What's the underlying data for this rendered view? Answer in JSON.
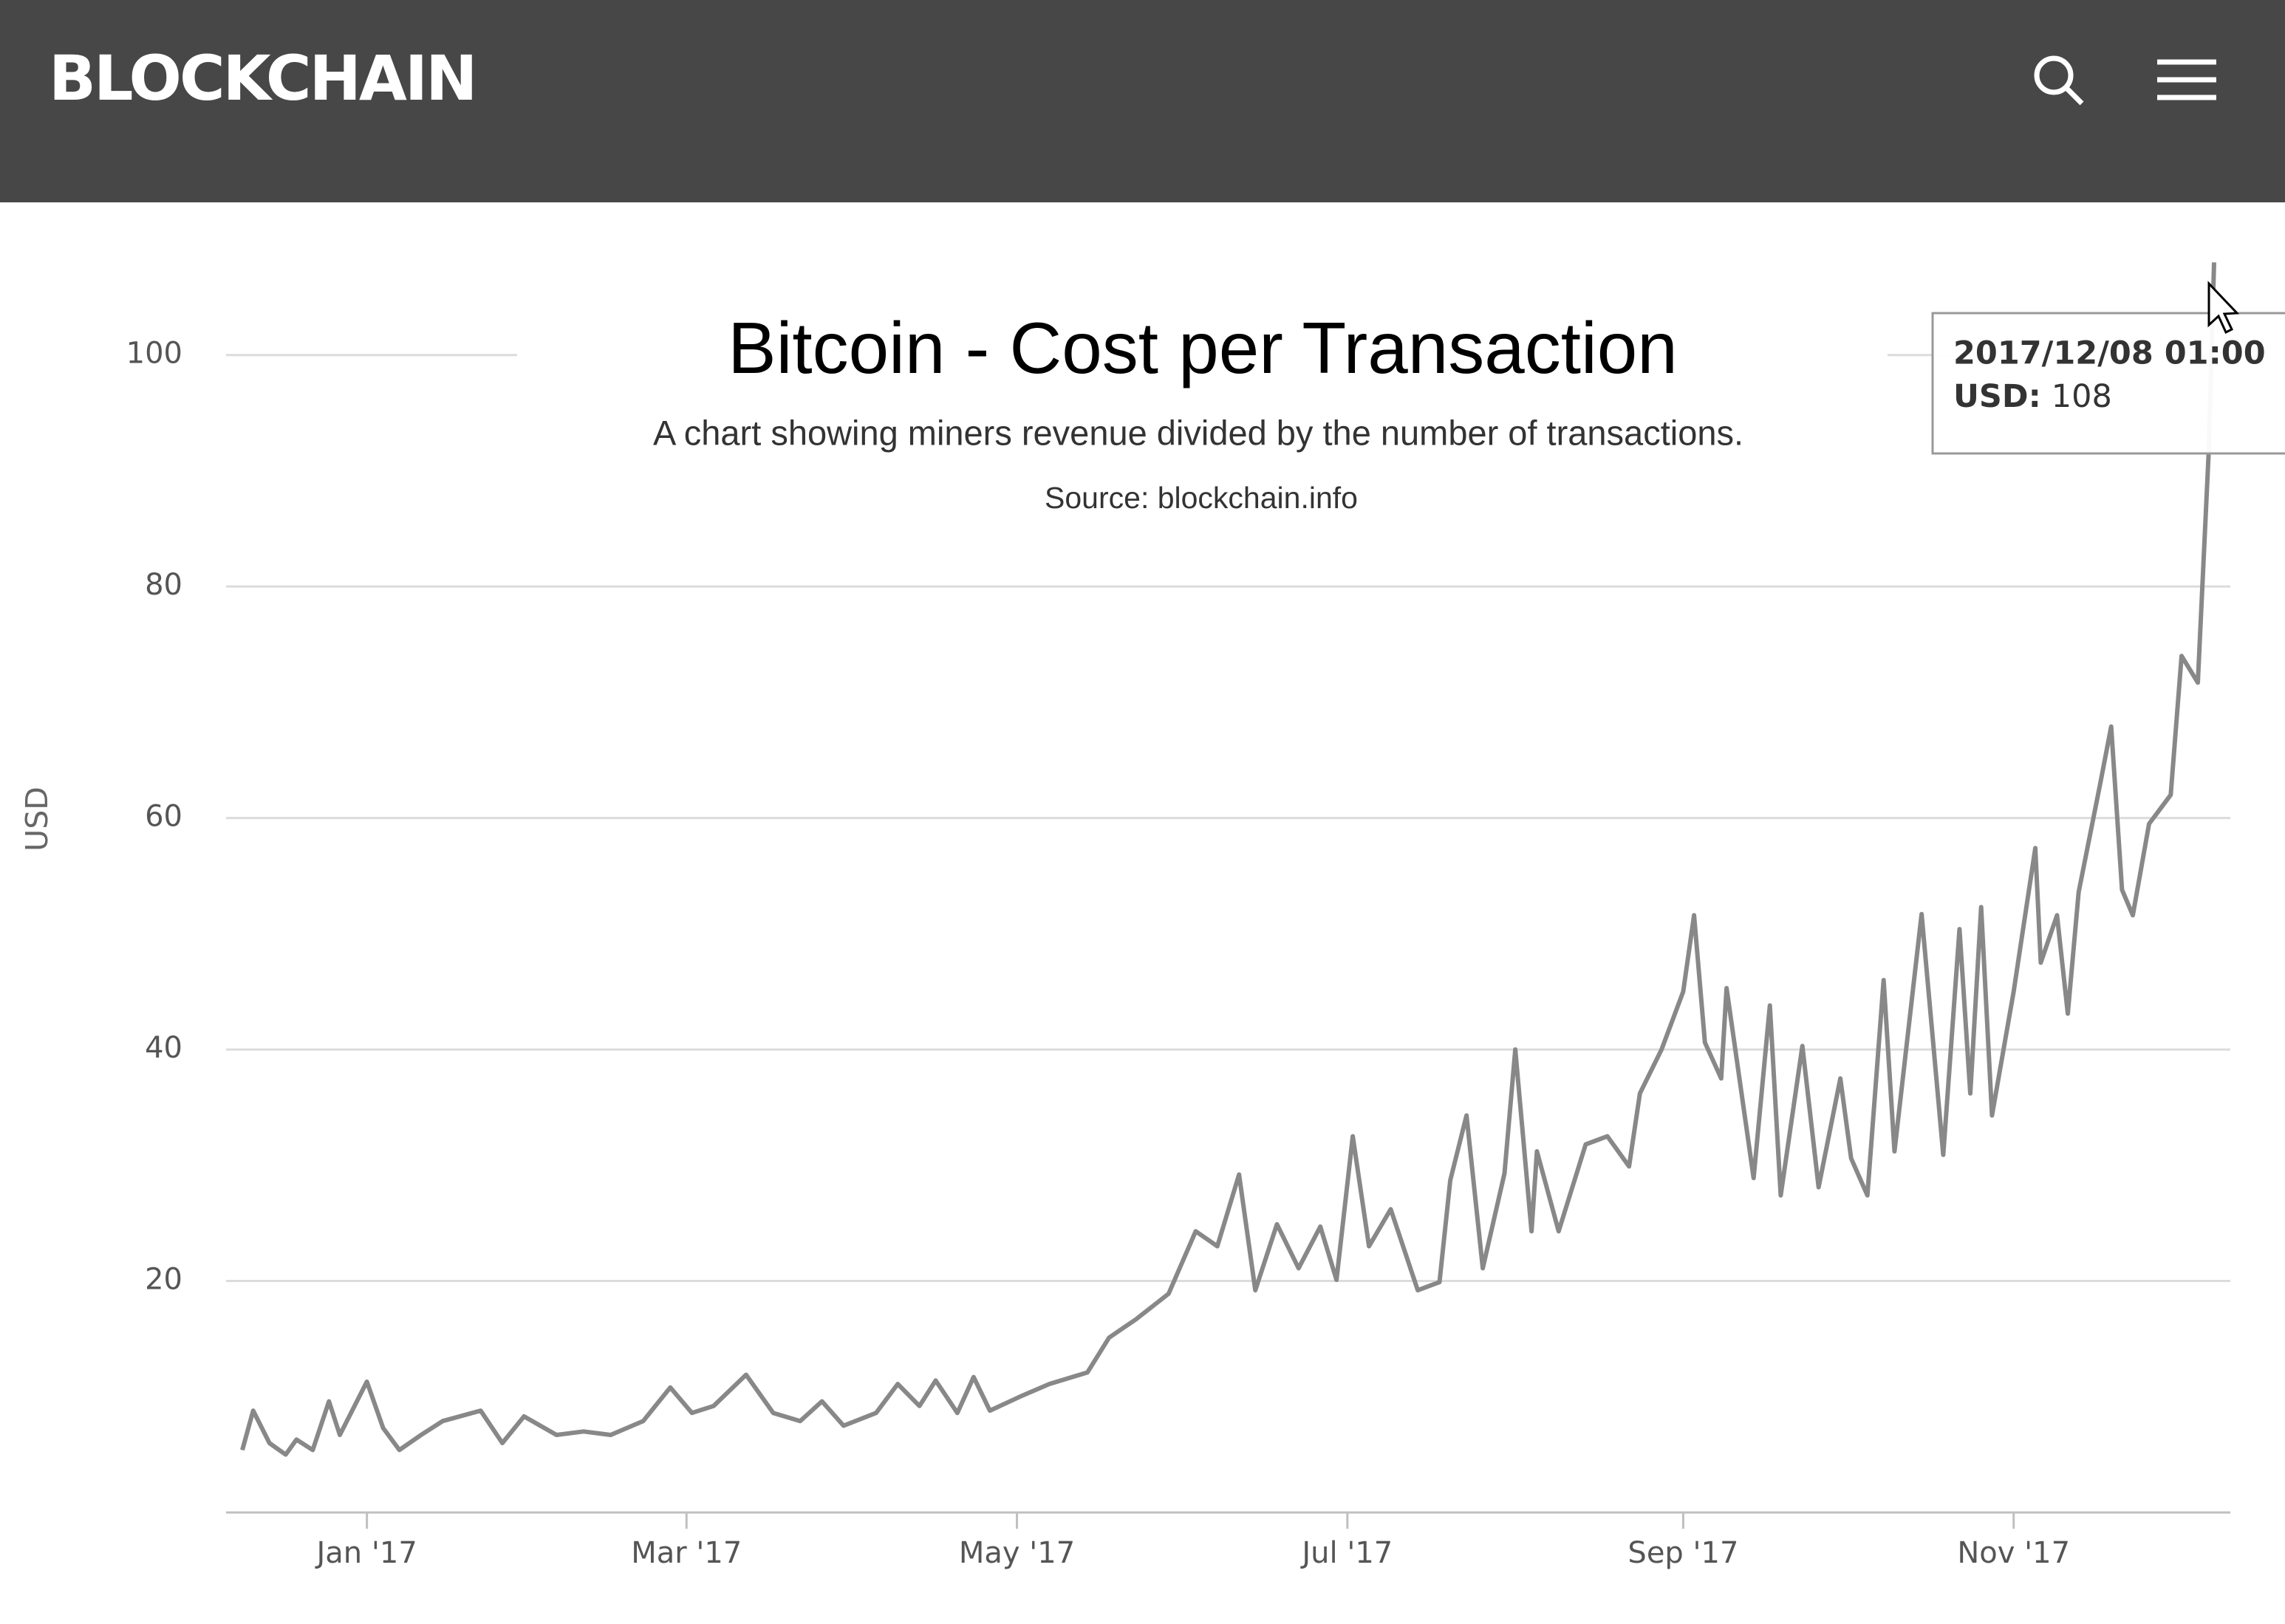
{
  "header": {
    "brand": "BLOCKCHAIN"
  },
  "chart_data": {
    "type": "line",
    "title": "Bitcoin - Cost per Transaction",
    "subtitle": "A chart showing miners revenue divided by the number of transactions.",
    "source": "Source: blockchain.info",
    "y_label": "USD",
    "x": [
      "2016-12-09",
      "2016-12-11",
      "2016-12-14",
      "2016-12-17",
      "2016-12-19",
      "2016-12-22",
      "2016-12-25",
      "2016-12-27",
      "2017-01-01",
      "2017-01-04",
      "2017-01-07",
      "2017-01-11",
      "2017-01-15",
      "2017-01-22",
      "2017-01-26",
      "2017-01-30",
      "2017-02-05",
      "2017-02-10",
      "2017-02-15",
      "2017-02-21",
      "2017-02-26",
      "2017-03-02",
      "2017-03-06",
      "2017-03-12",
      "2017-03-17",
      "2017-03-22",
      "2017-03-26",
      "2017-03-30",
      "2017-04-05",
      "2017-04-09",
      "2017-04-13",
      "2017-04-16",
      "2017-04-20",
      "2017-04-23",
      "2017-04-26",
      "2017-05-02",
      "2017-05-07",
      "2017-05-14",
      "2017-05-18",
      "2017-05-23",
      "2017-05-29",
      "2017-06-03",
      "2017-06-07",
      "2017-06-11",
      "2017-06-14",
      "2017-06-18",
      "2017-06-22",
      "2017-06-26",
      "2017-06-29",
      "2017-07-02",
      "2017-07-05",
      "2017-07-09",
      "2017-07-14",
      "2017-07-18",
      "2017-07-20",
      "2017-07-23",
      "2017-07-26",
      "2017-07-30",
      "2017-08-01",
      "2017-08-04",
      "2017-08-05",
      "2017-08-09",
      "2017-08-14",
      "2017-08-18",
      "2017-08-22",
      "2017-08-24",
      "2017-08-28",
      "2017-09-01",
      "2017-09-03",
      "2017-09-05",
      "2017-09-08",
      "2017-09-09",
      "2017-09-14",
      "2017-09-17",
      "2017-09-19",
      "2017-09-23",
      "2017-09-26",
      "2017-09-30",
      "2017-10-02",
      "2017-10-05",
      "2017-10-08",
      "2017-10-10",
      "2017-10-15",
      "2017-10-19",
      "2017-10-22",
      "2017-10-24",
      "2017-10-26",
      "2017-10-28",
      "2017-11-01",
      "2017-11-05",
      "2017-11-06",
      "2017-11-09",
      "2017-11-11",
      "2017-11-13",
      "2017-11-17",
      "2017-11-19",
      "2017-11-21",
      "2017-11-23",
      "2017-11-26",
      "2017-11-30",
      "2017-12-02",
      "2017-12-05",
      "2017-12-07",
      "2017-12-08"
    ],
    "series": [
      {
        "name": "USD",
        "color": "#888888",
        "values": [
          5.4,
          8.8,
          6,
          5,
          6.3,
          5.4,
          9.6,
          6.7,
          11.3,
          7.3,
          5.4,
          6.7,
          7.9,
          8.8,
          6,
          8.3,
          6.7,
          7,
          6.7,
          7.9,
          10.8,
          8.6,
          9.2,
          11.9,
          8.6,
          7.9,
          9.6,
          7.5,
          8.6,
          11.1,
          9.2,
          11.4,
          8.6,
          11.7,
          8.8,
          10.1,
          11.1,
          12.1,
          15.1,
          16.7,
          18.9,
          24.3,
          23,
          29.2,
          19.2,
          24.9,
          21.1,
          24.7,
          20.1,
          32.5,
          23,
          26.2,
          19.2,
          19.9,
          28.7,
          34.3,
          21.1,
          29.3,
          40,
          24.3,
          31.2,
          24.3,
          31.8,
          32.5,
          29.9,
          36.2,
          40,
          45,
          51.6,
          40.6,
          37.5,
          45.3,
          28.9,
          43.8,
          27.4,
          40.3,
          28.1,
          37.5,
          30.6,
          27.4,
          46,
          31.2,
          51.7,
          30.9,
          50.4,
          36.2,
          52.3,
          34.3,
          45,
          57.4,
          47.5,
          51.6,
          43.1,
          53.6,
          63,
          67.9,
          53.8,
          51.6,
          59.5,
          62,
          74,
          71.7,
          91.6,
          108
        ]
      }
    ],
    "xlim": [
      "2016-12-06",
      "2017-12-11"
    ],
    "xticks": [
      {
        "value": "2017-01-01",
        "label": "Jan '17"
      },
      {
        "value": "2017-03-01",
        "label": "Mar '17"
      },
      {
        "value": "2017-05-01",
        "label": "May '17"
      },
      {
        "value": "2017-07-01",
        "label": "Jul '17"
      },
      {
        "value": "2017-09-01",
        "label": "Sep '17"
      },
      {
        "value": "2017-11-01",
        "label": "Nov '17"
      }
    ],
    "ylim": [
      0,
      110
    ],
    "yticks": [
      20,
      40,
      60,
      80,
      100
    ],
    "grid": true,
    "tooltip": {
      "date": "2017/12/08 01:00",
      "label": "USD:",
      "value": 108
    }
  }
}
